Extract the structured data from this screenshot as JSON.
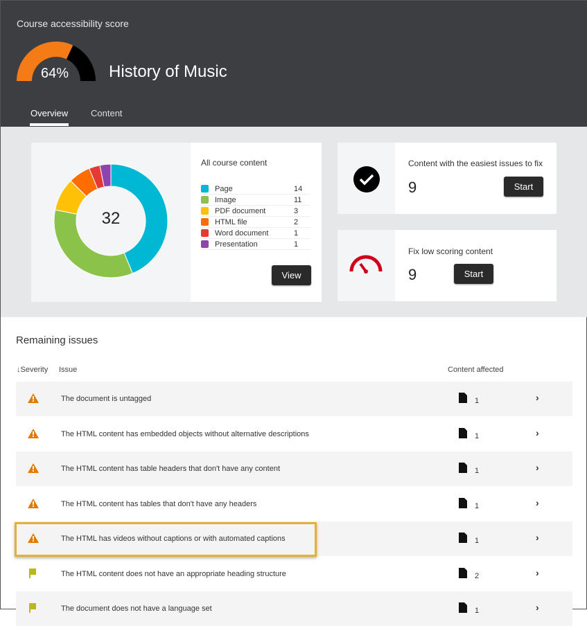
{
  "header": {
    "score_label": "Course accessibility score",
    "score_percent": 64,
    "score_text": "64%",
    "course_title": "History of Music",
    "gauge_colors": {
      "fill": "#f47b16",
      "rest": "#000000"
    }
  },
  "tabs": [
    {
      "label": "Overview",
      "active": true
    },
    {
      "label": "Content",
      "active": false
    }
  ],
  "content_card": {
    "title": "All course content",
    "total": "32",
    "view_label": "View",
    "items": [
      {
        "label": "Page",
        "count": 14,
        "color": "#00b7d4"
      },
      {
        "label": "Image",
        "count": 11,
        "color": "#8bc34a"
      },
      {
        "label": "PDF document",
        "count": 3,
        "color": "#ffc107"
      },
      {
        "label": "HTML file",
        "count": 2,
        "color": "#ff6d00"
      },
      {
        "label": "Word document",
        "count": 1,
        "color": "#e53935"
      },
      {
        "label": "Presentation",
        "count": 1,
        "color": "#8e44ad"
      }
    ]
  },
  "easy_card": {
    "title": "Content with the easiest issues to fix",
    "count": "9",
    "button": "Start",
    "icon": "checkmark-circle-icon"
  },
  "low_card": {
    "title": "Fix low scoring content",
    "count": "9",
    "button": "Start",
    "icon": "speedometer-icon"
  },
  "issues": {
    "title": "Remaining issues",
    "col_severity": "Severity",
    "col_issue": "Issue",
    "col_affected": "Content affected",
    "rows": [
      {
        "severity": "warning",
        "text": "The document is untagged",
        "count": "1"
      },
      {
        "severity": "warning",
        "text": "The HTML content has embedded objects without alternative descriptions",
        "count": "1"
      },
      {
        "severity": "warning",
        "text": "The HTML content has table headers that don't have any content",
        "count": "1"
      },
      {
        "severity": "warning",
        "text": "The HTML content has tables that don't have any headers",
        "count": "1"
      },
      {
        "severity": "warning",
        "text": "The HTML has videos without captions or with automated captions",
        "count": "1",
        "highlighted": true
      },
      {
        "severity": "flag",
        "text": "The HTML content does not have an appropriate heading structure",
        "count": "2"
      },
      {
        "severity": "flag",
        "text": "The document does not have a language set",
        "count": "1"
      }
    ]
  }
}
